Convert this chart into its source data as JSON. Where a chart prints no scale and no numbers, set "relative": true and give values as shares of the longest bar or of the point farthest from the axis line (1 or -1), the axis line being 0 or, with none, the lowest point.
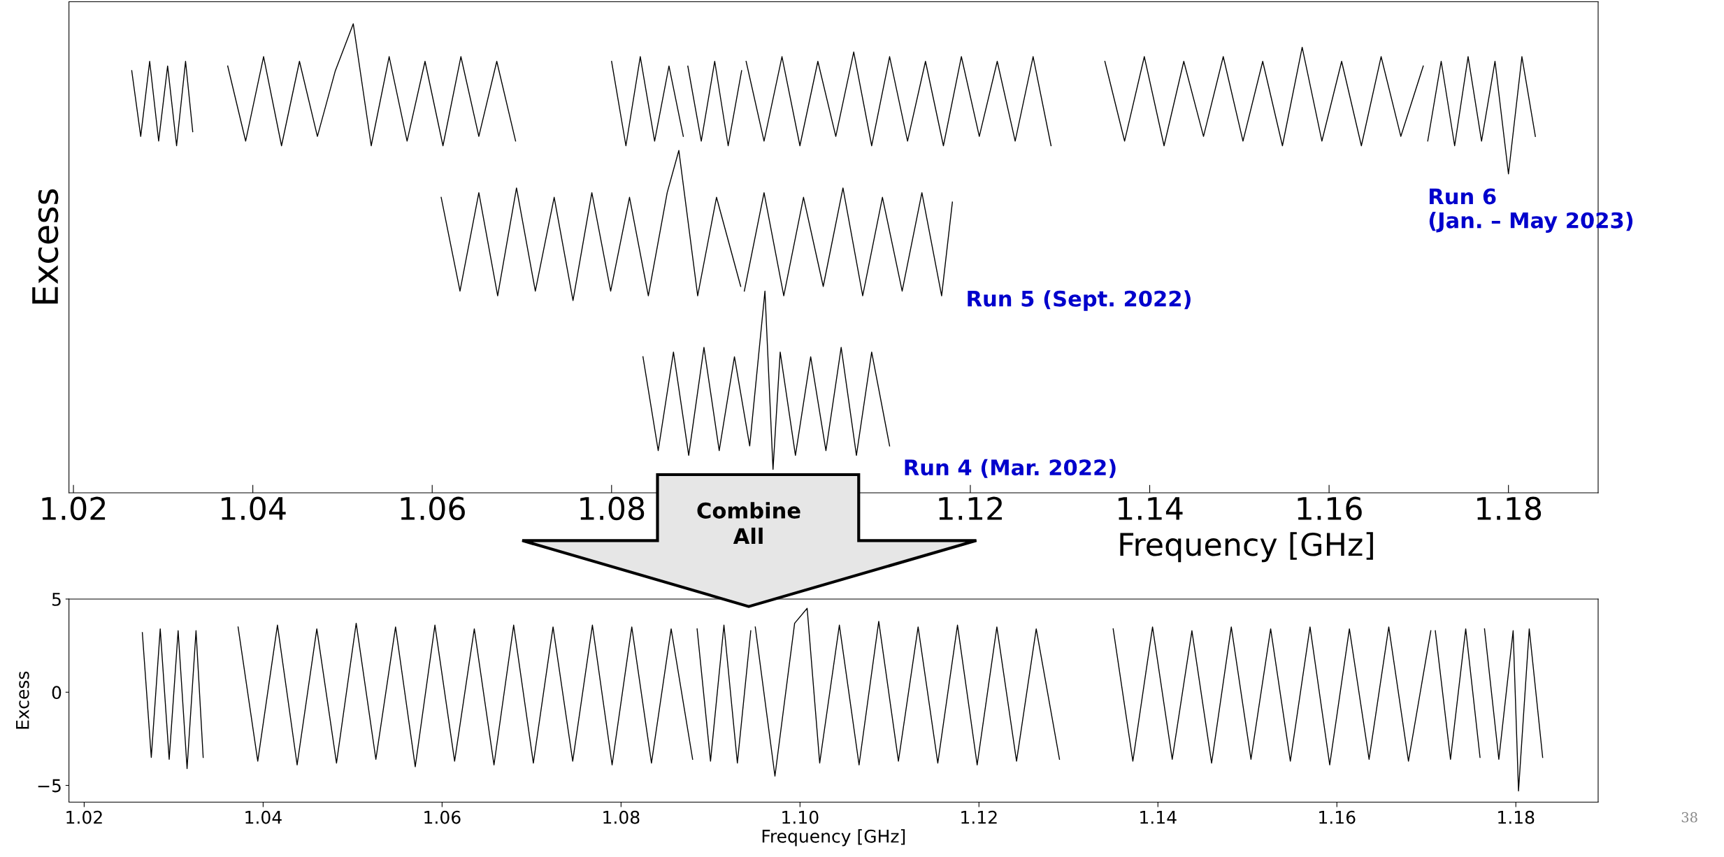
{
  "chart_data": [
    {
      "type": "line",
      "relative": true,
      "xlabel": "Frequency [GHz]",
      "ylabel": "Excess",
      "xlim": [
        1.0195,
        1.19
      ],
      "xticks": [
        1.02,
        1.04,
        1.06,
        1.08,
        {
          "value": 1.1,
          "label": null
        },
        1.12,
        1.14,
        1.16,
        1.18
      ],
      "tick_labels": "x",
      "grid": false,
      "annotations": [
        "Combine\nAll"
      ],
      "series": [
        {
          "name": "Run 6\n(Jan. – May 2023)",
          "color": "#000000",
          "x": [
            1.0265,
            1.0275,
            1.0285,
            1.0295,
            1.0305,
            1.0315,
            1.0325,
            1.0333,
            1.035,
            1.0372,
            1.0392,
            1.0412,
            1.0432,
            1.0452,
            1.0472,
            1.0492,
            1.0512,
            1.0532,
            1.0552,
            1.0572,
            1.0592,
            1.0612,
            1.0632,
            1.0652,
            1.0672,
            1.0693,
            1.075,
            1.08,
            1.0816,
            1.0832,
            1.0848,
            1.0864,
            1.088,
            1.0883,
            1.0885,
            1.09,
            1.0915,
            1.093,
            1.0945,
            1.0948,
            1.095,
            1.097,
            1.099,
            1.101,
            1.103,
            1.105,
            1.107,
            1.109,
            1.111,
            1.113,
            1.115,
            1.117,
            1.119,
            1.121,
            1.123,
            1.125,
            1.127,
            1.129,
            1.132,
            1.135,
            1.1372,
            1.1394,
            1.1416,
            1.1438,
            1.146,
            1.1482,
            1.1504,
            1.1526,
            1.1548,
            1.157,
            1.1592,
            1.1614,
            1.1636,
            1.1658,
            1.168,
            1.1705,
            1.1708,
            1.171,
            1.1725,
            1.174,
            1.1755,
            1.177,
            1.1785,
            1.18,
            1.1815,
            1.183
          ],
          "values": [
            0.9,
            0.76,
            0.92,
            0.75,
            0.91,
            0.74,
            0.92,
            0.77,
            null,
            0.91,
            0.75,
            0.93,
            0.74,
            0.92,
            0.76,
            0.9,
            1.0,
            0.74,
            0.93,
            0.75,
            0.92,
            0.74,
            0.93,
            0.76,
            0.92,
            0.75,
            null,
            0.92,
            0.74,
            0.93,
            0.75,
            0.91,
            0.76,
            null,
            0.91,
            0.75,
            0.92,
            0.74,
            0.9,
            null,
            0.92,
            0.75,
            0.93,
            0.74,
            0.92,
            0.76,
            0.94,
            0.74,
            0.93,
            0.75,
            0.92,
            0.74,
            0.93,
            0.76,
            0.92,
            0.75,
            0.93,
            0.74,
            null,
            0.92,
            0.75,
            0.93,
            0.74,
            0.92,
            0.76,
            0.93,
            0.75,
            0.92,
            0.74,
            0.95,
            0.75,
            0.92,
            0.74,
            0.93,
            0.76,
            0.91,
            null,
            0.75,
            0.92,
            0.74,
            0.93,
            0.75,
            0.92,
            0.68,
            0.93,
            0.76
          ]
        },
        {
          "name": "Run 5 (Sept. 2022)",
          "color": "#000000",
          "x": [
            1.061,
            1.0631,
            1.0652,
            1.0673,
            1.0694,
            1.0715,
            1.0736,
            1.0757,
            1.0778,
            1.0799,
            1.082,
            1.0841,
            1.0862,
            1.0875,
            1.0896,
            1.0917,
            1.0944,
            1.0946,
            1.0948,
            1.097,
            1.0992,
            1.1014,
            1.1036,
            1.1058,
            1.108,
            1.1102,
            1.1124,
            1.1146,
            1.1168,
            1.118
          ],
          "values": [
            0.63,
            0.43,
            0.64,
            0.42,
            0.65,
            0.43,
            0.63,
            0.41,
            0.64,
            0.43,
            0.63,
            0.42,
            0.64,
            0.73,
            0.42,
            0.63,
            0.44,
            null,
            0.43,
            0.64,
            0.42,
            0.63,
            0.44,
            0.65,
            0.42,
            0.63,
            0.43,
            0.64,
            0.42,
            0.62
          ]
        },
        {
          "name": "Run 4 (Mar. 2022)",
          "color": "#000000",
          "x": [
            1.0835,
            1.0852,
            1.0869,
            1.0886,
            1.0903,
            1.092,
            1.0937,
            1.0954,
            1.0971,
            1.098,
            1.0988,
            1.1005,
            1.1022,
            1.1039,
            1.1056,
            1.1073,
            1.109,
            1.111
          ],
          "values": [
            0.29,
            0.09,
            0.3,
            0.08,
            0.31,
            0.09,
            0.29,
            0.1,
            0.43,
            0.05,
            0.3,
            0.08,
            0.29,
            0.09,
            0.31,
            0.08,
            0.3,
            0.1
          ]
        }
      ]
    },
    {
      "type": "line",
      "xlabel": "Frequency [GHz]",
      "ylabel": "Excess",
      "xlim": [
        1.0183,
        1.1892
      ],
      "xticks": [
        1.02,
        1.04,
        1.06,
        1.08,
        {
          "value": 1.1,
          "label": "1.10"
        },
        1.12,
        1.14,
        1.16,
        1.18
      ],
      "ylim": [
        -5.9,
        5
      ],
      "yticks": [
        {
          "value": -5,
          "label": "−5"
        },
        0,
        5
      ],
      "grid": false,
      "annotations": [
        "38"
      ],
      "series": [
        {
          "color": "#000000",
          "x": [
            1.0265,
            1.0275,
            1.0285,
            1.0295,
            1.0305,
            1.0315,
            1.0325,
            1.0333,
            1.035,
            1.0372,
            1.0394,
            1.0416,
            1.0438,
            1.046,
            1.0482,
            1.0504,
            1.0526,
            1.0548,
            1.057,
            1.0592,
            1.0614,
            1.0636,
            1.0658,
            1.068,
            1.0702,
            1.0724,
            1.0746,
            1.0768,
            1.079,
            1.0812,
            1.0834,
            1.0856,
            1.088,
            1.0883,
            1.0885,
            1.09,
            1.0915,
            1.093,
            1.0945,
            1.0948,
            1.095,
            1.0972,
            1.0994,
            1.1008,
            1.1022,
            1.1044,
            1.1066,
            1.1088,
            1.111,
            1.1132,
            1.1154,
            1.1176,
            1.1198,
            1.122,
            1.1242,
            1.1264,
            1.129,
            1.132,
            1.135,
            1.1372,
            1.1394,
            1.1416,
            1.1438,
            1.146,
            1.1482,
            1.1504,
            1.1526,
            1.1548,
            1.157,
            1.1592,
            1.1614,
            1.1636,
            1.1658,
            1.168,
            1.1705,
            1.1708,
            1.171,
            1.1727,
            1.1744,
            1.176,
            1.1763,
            1.1765,
            1.1781,
            1.1797,
            1.1803,
            1.1815,
            1.183
          ],
          "values": [
            3.2,
            -3.5,
            3.4,
            -3.6,
            3.3,
            -4.1,
            3.3,
            -3.5,
            null,
            3.5,
            -3.7,
            3.6,
            -3.9,
            3.4,
            -3.8,
            3.7,
            -3.6,
            3.5,
            -4.0,
            3.6,
            -3.7,
            3.4,
            -3.9,
            3.6,
            -3.8,
            3.5,
            -3.7,
            3.6,
            -3.9,
            3.5,
            -3.8,
            3.4,
            -3.6,
            null,
            3.4,
            -3.7,
            3.6,
            -3.8,
            3.3,
            null,
            3.5,
            -4.5,
            3.7,
            4.5,
            -3.8,
            3.6,
            -3.9,
            3.8,
            -3.7,
            3.5,
            -3.8,
            3.6,
            -3.9,
            3.5,
            -3.7,
            3.4,
            -3.6,
            null,
            3.4,
            -3.7,
            3.5,
            -3.6,
            3.3,
            -3.8,
            3.5,
            -3.6,
            3.4,
            -3.7,
            3.5,
            -3.9,
            3.4,
            -3.6,
            3.5,
            -3.7,
            3.3,
            null,
            3.3,
            -3.6,
            3.4,
            -3.5,
            null,
            3.4,
            -3.6,
            3.3,
            -5.3,
            3.4,
            -3.5
          ]
        }
      ]
    }
  ]
}
